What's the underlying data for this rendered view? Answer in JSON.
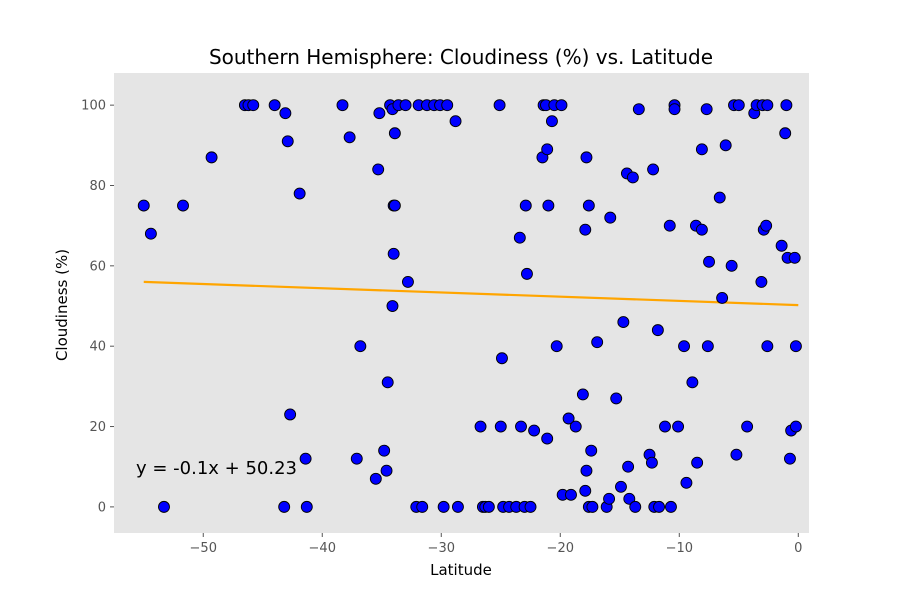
{
  "chart_data": {
    "type": "scatter",
    "title": "Southern Hemisphere: Cloudiness (%) vs. Latitude",
    "xlabel": "Latitude",
    "ylabel": "Cloudiness (%)",
    "xlim": [
      -57.5,
      0.9
    ],
    "ylim": [
      -6.5,
      108
    ],
    "x_ticks": [
      -50,
      -40,
      -30,
      -20,
      -10,
      0
    ],
    "x_tick_labels": [
      "−50",
      "−40",
      "−30",
      "−20",
      "−10",
      "0"
    ],
    "y_ticks": [
      0,
      20,
      40,
      60,
      80,
      100
    ],
    "y_tick_labels": [
      "0",
      "20",
      "40",
      "60",
      "80",
      "100"
    ],
    "grid": false,
    "legend": "none",
    "colors": {
      "plot_background": "#e5e5e5",
      "point_fill": "#0000ff",
      "point_edge": "#000000",
      "regression_line": "#ffa500"
    },
    "series": [
      {
        "points": [
          [
            -55,
            75
          ],
          [
            -54.4,
            68
          ],
          [
            -53.3,
            0
          ],
          [
            -51.7,
            75
          ],
          [
            -49.3,
            87
          ],
          [
            -46.5,
            100
          ],
          [
            -46.2,
            100
          ],
          [
            -45.8,
            100
          ],
          [
            -44,
            100
          ],
          [
            -43.2,
            0
          ],
          [
            -43.1,
            98
          ],
          [
            -42.9,
            91
          ],
          [
            -42.7,
            23
          ],
          [
            -41.9,
            78
          ],
          [
            -41.4,
            12
          ],
          [
            -41.3,
            0
          ],
          [
            -38.3,
            100
          ],
          [
            -37.7,
            92
          ],
          [
            -37.1,
            12
          ],
          [
            -36.8,
            40
          ],
          [
            -35.5,
            7
          ],
          [
            -35.3,
            84
          ],
          [
            -35.2,
            98
          ],
          [
            -34.8,
            14
          ],
          [
            -34.6,
            9
          ],
          [
            -34.5,
            31
          ],
          [
            -34.3,
            100
          ],
          [
            -34.1,
            99
          ],
          [
            -34.1,
            50
          ],
          [
            -34,
            63
          ],
          [
            -34,
            75
          ],
          [
            -33.9,
            75
          ],
          [
            -33.9,
            93
          ],
          [
            -33.6,
            100
          ],
          [
            -33,
            100
          ],
          [
            -32.8,
            56
          ],
          [
            -32.1,
            0
          ],
          [
            -31.9,
            100
          ],
          [
            -31.6,
            0
          ],
          [
            -31.2,
            100
          ],
          [
            -30.6,
            100
          ],
          [
            -30.1,
            100
          ],
          [
            -29.8,
            0
          ],
          [
            -29.5,
            100
          ],
          [
            -28.8,
            96
          ],
          [
            -28.6,
            0
          ],
          [
            -26.7,
            20
          ],
          [
            -26.5,
            0
          ],
          [
            -26.3,
            0
          ],
          [
            -26,
            0
          ],
          [
            -25.1,
            100
          ],
          [
            -25,
            20
          ],
          [
            -24.9,
            37
          ],
          [
            -24.8,
            0
          ],
          [
            -24.3,
            0
          ],
          [
            -23.7,
            0
          ],
          [
            -23.4,
            67
          ],
          [
            -23.3,
            20
          ],
          [
            -23,
            0
          ],
          [
            -22.9,
            75
          ],
          [
            -22.8,
            58
          ],
          [
            -22.5,
            0
          ],
          [
            -22.2,
            19
          ],
          [
            -21.5,
            87
          ],
          [
            -21.4,
            100
          ],
          [
            -21.2,
            100
          ],
          [
            -21.1,
            17
          ],
          [
            -21.1,
            89
          ],
          [
            -21,
            75
          ],
          [
            -20.7,
            96
          ],
          [
            -20.5,
            100
          ],
          [
            -20.3,
            40
          ],
          [
            -19.9,
            100
          ],
          [
            -19.8,
            3
          ],
          [
            -19.3,
            22
          ],
          [
            -19.1,
            3
          ],
          [
            -18.7,
            20
          ],
          [
            -18.1,
            28
          ],
          [
            -17.9,
            4
          ],
          [
            -17.9,
            69
          ],
          [
            -17.8,
            87
          ],
          [
            -17.8,
            9
          ],
          [
            -17.6,
            75
          ],
          [
            -17.6,
            0
          ],
          [
            -17.4,
            14
          ],
          [
            -17.3,
            0
          ],
          [
            -16.9,
            41
          ],
          [
            -16.1,
            0
          ],
          [
            -15.9,
            2
          ],
          [
            -15.8,
            72
          ],
          [
            -15.3,
            27
          ],
          [
            -14.9,
            5
          ],
          [
            -14.7,
            46
          ],
          [
            -14.4,
            83
          ],
          [
            -14.3,
            10
          ],
          [
            -14.2,
            2
          ],
          [
            -13.9,
            82
          ],
          [
            -13.7,
            0
          ],
          [
            -13.4,
            99
          ],
          [
            -12.5,
            13
          ],
          [
            -12.3,
            11
          ],
          [
            -12.2,
            84
          ],
          [
            -12.1,
            0
          ],
          [
            -11.8,
            44
          ],
          [
            -11.7,
            0
          ],
          [
            -11.2,
            20
          ],
          [
            -10.8,
            70
          ],
          [
            -10.7,
            0
          ],
          [
            -10.4,
            100
          ],
          [
            -10.4,
            99
          ],
          [
            -10.1,
            20
          ],
          [
            -9.6,
            40
          ],
          [
            -9.4,
            6
          ],
          [
            -8.9,
            31
          ],
          [
            -8.6,
            70
          ],
          [
            -8.5,
            11
          ],
          [
            -8.1,
            89
          ],
          [
            -8.1,
            69
          ],
          [
            -7.7,
            99
          ],
          [
            -7.6,
            40
          ],
          [
            -7.5,
            61
          ],
          [
            -6.6,
            77
          ],
          [
            -6.4,
            52
          ],
          [
            -6.1,
            90
          ],
          [
            -5.6,
            60
          ],
          [
            -5.4,
            100
          ],
          [
            -5.2,
            13
          ],
          [
            -5,
            100
          ],
          [
            -4.3,
            20
          ],
          [
            -3.7,
            98
          ],
          [
            -3.5,
            100
          ],
          [
            -3.1,
            56
          ],
          [
            -3,
            100
          ],
          [
            -2.9,
            69
          ],
          [
            -2.7,
            70
          ],
          [
            -2.6,
            100
          ],
          [
            -2.6,
            40
          ],
          [
            -1.4,
            65
          ],
          [
            -1.1,
            93
          ],
          [
            -1,
            100
          ],
          [
            -0.9,
            62
          ],
          [
            -0.7,
            12
          ],
          [
            -0.6,
            19
          ],
          [
            -0.3,
            62
          ],
          [
            -0.2,
            20
          ],
          [
            -0.2,
            40
          ]
        ]
      }
    ],
    "regression": {
      "x_start": -55,
      "x_end": 0,
      "y_start": 56,
      "y_end": 50.23,
      "equation": "y = -0.1x + 50.23"
    }
  }
}
